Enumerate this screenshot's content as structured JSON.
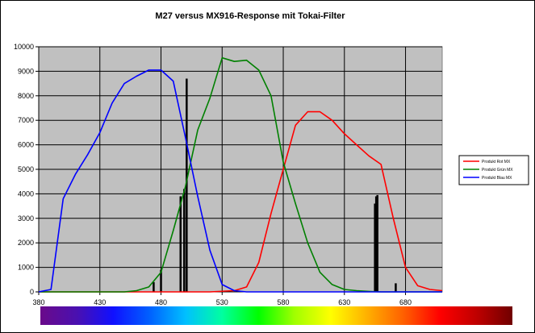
{
  "chart_data": {
    "type": "line",
    "title": "M27 versus MX916-Response mit Tokai-Filter",
    "xlabel": "",
    "ylabel": "",
    "xlim": [
      380,
      710
    ],
    "ylim": [
      0,
      10000
    ],
    "x_ticks": [
      380,
      430,
      480,
      530,
      580,
      630,
      680
    ],
    "y_ticks": [
      0,
      1000,
      2000,
      3000,
      4000,
      5000,
      6000,
      7000,
      8000,
      9000,
      10000
    ],
    "grid": true,
    "legend_position": "right",
    "plot_background": "#c0c0c0",
    "series": [
      {
        "name": "Produkt Rot MX",
        "color": "#ff0000",
        "x": [
          380,
          520,
          540,
          550,
          560,
          570,
          580,
          590,
          600,
          610,
          620,
          630,
          640,
          650,
          660,
          670,
          680,
          690,
          700,
          710
        ],
        "values": [
          0,
          0,
          50,
          200,
          1200,
          3200,
          5000,
          6800,
          7350,
          7350,
          7000,
          6450,
          6000,
          5550,
          5200,
          3000,
          1000,
          250,
          100,
          50
        ]
      },
      {
        "name": "Produkt Grün MX",
        "color": "#008000",
        "x": [
          380,
          450,
          460,
          470,
          480,
          490,
          500,
          510,
          520,
          530,
          540,
          550,
          560,
          570,
          580,
          590,
          600,
          610,
          620,
          630,
          640,
          650,
          660,
          710
        ],
        "values": [
          0,
          0,
          50,
          200,
          800,
          2500,
          4300,
          6600,
          7900,
          9550,
          9400,
          9450,
          9050,
          8000,
          5300,
          3600,
          2000,
          800,
          300,
          100,
          50,
          20,
          0,
          0
        ]
      },
      {
        "name": "Produkt Blau MX",
        "color": "#0000ff",
        "x": [
          380,
          390,
          400,
          410,
          420,
          430,
          440,
          450,
          460,
          470,
          480,
          490,
          500,
          510,
          520,
          530,
          540,
          550,
          560,
          710
        ],
        "values": [
          0,
          100,
          3800,
          4800,
          5600,
          6500,
          7700,
          8500,
          8800,
          9050,
          9050,
          8600,
          6300,
          3900,
          1700,
          300,
          50,
          0,
          0,
          0
        ]
      }
    ],
    "emission_lines": {
      "color": "#000000",
      "x": [
        474,
        480,
        496,
        499,
        501,
        655,
        656,
        657,
        672
      ],
      "values": [
        400,
        900,
        3900,
        4200,
        8700,
        3600,
        3900,
        3950,
        350
      ]
    },
    "spectrum_bar": {
      "colors": [
        "#6a0a8a",
        "#4a10b0",
        "#1010ff",
        "#0060ff",
        "#00c0ff",
        "#00ffa0",
        "#00ff00",
        "#a0ff00",
        "#ffff00",
        "#ffb000",
        "#ff6000",
        "#ff0000",
        "#c00000",
        "#700000"
      ]
    }
  }
}
